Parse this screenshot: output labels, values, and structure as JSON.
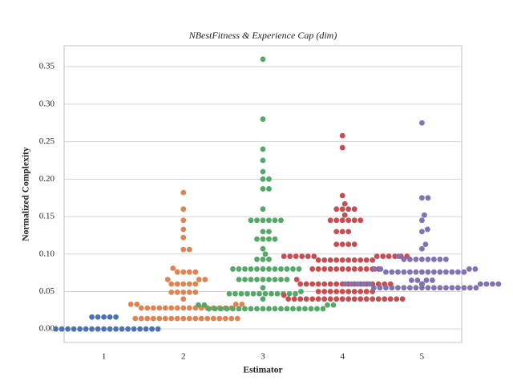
{
  "chart_data": {
    "type": "swarm",
    "title": "NBestFitness & Experience Cap (dim)",
    "xlabel": "Estimator",
    "ylabel": "Normalized Complexity",
    "categories": [
      "1",
      "2",
      "3",
      "4",
      "5"
    ],
    "colors": [
      "#4c72b0",
      "#dd8452",
      "#55a868",
      "#c44e52",
      "#8172b3"
    ],
    "ylim": [
      -0.018,
      0.378
    ],
    "yticks": [
      {
        "value": 0,
        "label": "0.00"
      },
      0.05,
      {
        "value": 0.1,
        "label": "0.10"
      },
      0.15,
      {
        "value": 0.2,
        "label": "0.20"
      },
      0.25,
      {
        "value": 0.3,
        "label": "0.30"
      },
      0.35
    ],
    "grid": true,
    "values": [
      [
        0,
        0,
        0,
        0,
        0,
        0,
        0,
        0,
        0,
        0,
        0,
        0,
        0,
        0,
        0,
        0,
        0,
        0,
        0.016,
        0.016,
        0.016,
        0.016,
        0.016
      ],
      [
        0.014,
        0.014,
        0.014,
        0.014,
        0.014,
        0.014,
        0.014,
        0.014,
        0.014,
        0.014,
        0.014,
        0.014,
        0.014,
        0.014,
        0.014,
        0.014,
        0.014,
        0.014,
        0.028,
        0.028,
        0.028,
        0.028,
        0.028,
        0.028,
        0.028,
        0.028,
        0.028,
        0.028,
        0.028,
        0.028,
        0.028,
        0.028,
        0.028,
        0.028,
        0.033,
        0.033,
        0.033,
        0.033,
        0.04,
        0.049,
        0.049,
        0.049,
        0.049,
        0.049,
        0.06,
        0.06,
        0.06,
        0.06,
        0.06,
        0.066,
        0.066,
        0.066,
        0.076,
        0.076,
        0.076,
        0.076,
        0.081,
        0.106,
        0.106,
        0.122,
        0.133,
        0.145,
        0.16,
        0.182
      ],
      [
        0.027,
        0.027,
        0.027,
        0.027,
        0.027,
        0.027,
        0.027,
        0.027,
        0.027,
        0.027,
        0.027,
        0.027,
        0.027,
        0.027,
        0.027,
        0.027,
        0.027,
        0.027,
        0.027,
        0.027,
        0.032,
        0.032,
        0.032,
        0.032,
        0.04,
        0.047,
        0.047,
        0.047,
        0.047,
        0.047,
        0.047,
        0.047,
        0.047,
        0.047,
        0.047,
        0.047,
        0.047,
        0.05,
        0.055,
        0.066,
        0.066,
        0.066,
        0.066,
        0.066,
        0.066,
        0.066,
        0.066,
        0.066,
        0.08,
        0.08,
        0.08,
        0.08,
        0.08,
        0.08,
        0.08,
        0.08,
        0.08,
        0.08,
        0.08,
        0.08,
        0.093,
        0.093,
        0.093,
        0.1,
        0.107,
        0.12,
        0.12,
        0.12,
        0.12,
        0.13,
        0.13,
        0.145,
        0.145,
        0.145,
        0.145,
        0.145,
        0.145,
        0.16,
        0.187,
        0.187,
        0.2,
        0.2,
        0.21,
        0.225,
        0.24,
        0.28,
        0.36
      ],
      [
        0.04,
        0.04,
        0.04,
        0.04,
        0.04,
        0.04,
        0.04,
        0.04,
        0.04,
        0.04,
        0.04,
        0.04,
        0.04,
        0.04,
        0.04,
        0.04,
        0.04,
        0.04,
        0.04,
        0.04,
        0.045,
        0.05,
        0.05,
        0.05,
        0.05,
        0.05,
        0.05,
        0.05,
        0.05,
        0.05,
        0.05,
        0.06,
        0.06,
        0.06,
        0.06,
        0.06,
        0.06,
        0.06,
        0.06,
        0.06,
        0.06,
        0.06,
        0.06,
        0.06,
        0.06,
        0.06,
        0.06,
        0.066,
        0.08,
        0.08,
        0.08,
        0.08,
        0.08,
        0.08,
        0.08,
        0.08,
        0.08,
        0.08,
        0.08,
        0.08,
        0.092,
        0.092,
        0.092,
        0.092,
        0.092,
        0.092,
        0.092,
        0.092,
        0.092,
        0.092,
        0.097,
        0.097,
        0.097,
        0.097,
        0.097,
        0.097,
        0.097,
        0.097,
        0.097,
        0.097,
        0.097,
        0.097,
        0.113,
        0.113,
        0.113,
        0.113,
        0.13,
        0.13,
        0.13,
        0.145,
        0.145,
        0.145,
        0.145,
        0.145,
        0.145,
        0.152,
        0.16,
        0.16,
        0.16,
        0.16,
        0.167,
        0.178,
        0.242,
        0.258
      ],
      [
        0.055,
        0.055,
        0.055,
        0.055,
        0.055,
        0.055,
        0.055,
        0.055,
        0.055,
        0.055,
        0.055,
        0.055,
        0.055,
        0.055,
        0.055,
        0.055,
        0.055,
        0.055,
        0.06,
        0.06,
        0.06,
        0.06,
        0.06,
        0.06,
        0.06,
        0.06,
        0.06,
        0.06,
        0.06,
        0.06,
        0.06,
        0.06,
        0.06,
        0.06,
        0.065,
        0.065,
        0.065,
        0.065,
        0.076,
        0.076,
        0.076,
        0.076,
        0.076,
        0.076,
        0.076,
        0.076,
        0.076,
        0.076,
        0.076,
        0.076,
        0.076,
        0.076,
        0.08,
        0.08,
        0.08,
        0.08,
        0.093,
        0.093,
        0.093,
        0.093,
        0.093,
        0.093,
        0.093,
        0.093,
        0.097,
        0.107,
        0.113,
        0.13,
        0.133,
        0.145,
        0.152,
        0.175,
        0.175,
        0.275
      ]
    ]
  }
}
